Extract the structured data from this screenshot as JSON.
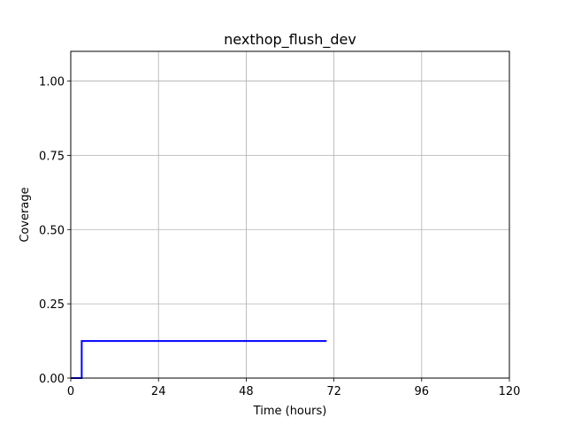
{
  "chart_data": {
    "type": "line",
    "title": "nexthop_flush_dev",
    "xlabel": "Time (hours)",
    "ylabel": "Coverage",
    "xlim": [
      0,
      120
    ],
    "ylim": [
      0,
      1.1
    ],
    "xticks": [
      0,
      24,
      48,
      72,
      96,
      120
    ],
    "yticks": [
      0.0,
      0.25,
      0.5,
      0.75,
      1.0
    ],
    "xtick_labels": [
      "0",
      "24",
      "48",
      "72",
      "96",
      "120"
    ],
    "ytick_labels": [
      "0.00",
      "0.25",
      "0.50",
      "0.75",
      "1.00"
    ],
    "grid": true,
    "series": [
      {
        "color": "#0000ff",
        "x": [
          0,
          3,
          3,
          70
        ],
        "y": [
          0,
          0,
          0.125,
          0.125
        ]
      }
    ]
  }
}
